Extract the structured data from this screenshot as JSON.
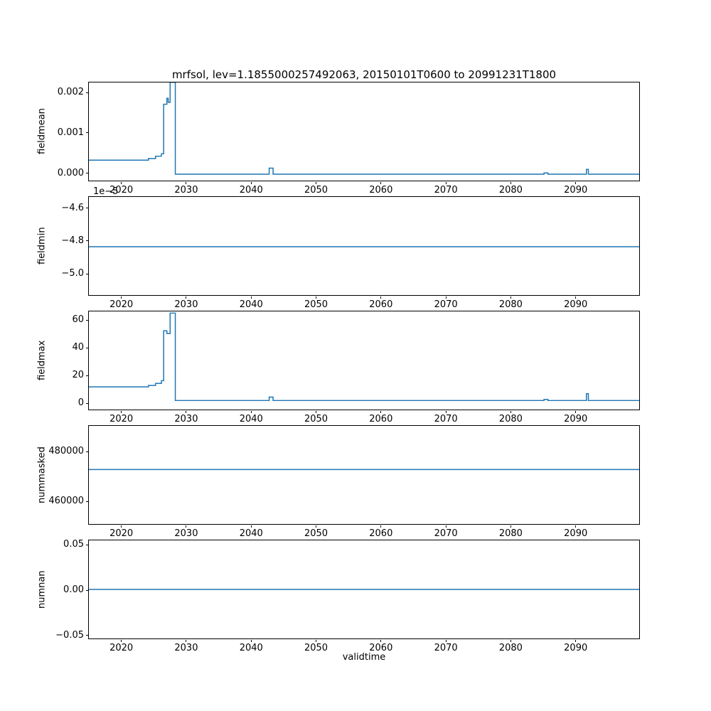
{
  "figure": {
    "title": "mrfsol, lev=1.1855000257492063, 20150101T0600 to 20991231T1800",
    "xlabel": "validtime",
    "line_color": "#1f77b4",
    "background": "#ffffff",
    "xlim": [
      2015,
      2100
    ],
    "xticks": [
      2020,
      2030,
      2040,
      2050,
      2060,
      2070,
      2080,
      2090
    ]
  },
  "chart_data": [
    {
      "type": "line",
      "panel": "fieldmean",
      "ylabel": "fieldmean",
      "ylim": [
        -0.000211,
        0.002246
      ],
      "yticks": [
        [
          0.0,
          "0.000"
        ],
        [
          0.001,
          "0.001"
        ],
        [
          0.002,
          "0.002"
        ]
      ],
      "points": [
        [
          2015,
          0.0003
        ],
        [
          2024.2,
          0.0003
        ],
        [
          2024.2,
          0.00034
        ],
        [
          2025.3,
          0.00034
        ],
        [
          2025.3,
          0.0004
        ],
        [
          2026.2,
          0.0004
        ],
        [
          2026.2,
          0.00046
        ],
        [
          2026.55,
          0.00046
        ],
        [
          2026.55,
          0.0017
        ],
        [
          2027.05,
          0.0017
        ],
        [
          2027.05,
          0.00185
        ],
        [
          2027.25,
          0.00185
        ],
        [
          2027.25,
          0.00175
        ],
        [
          2027.55,
          0.00175
        ],
        [
          2027.55,
          0.00225
        ],
        [
          2028.35,
          0.00225
        ],
        [
          2028.35,
          -5e-05
        ],
        [
          2042.85,
          -5e-05
        ],
        [
          2042.85,
          0.0001
        ],
        [
          2043.45,
          0.0001
        ],
        [
          2043.45,
          -5e-05
        ],
        [
          2085.3,
          -5e-05
        ],
        [
          2085.3,
          -2e-05
        ],
        [
          2085.9,
          -2e-05
        ],
        [
          2085.9,
          -5e-05
        ],
        [
          2091.85,
          -5e-05
        ],
        [
          2091.85,
          7e-05
        ],
        [
          2092.15,
          7e-05
        ],
        [
          2092.15,
          -5e-05
        ],
        [
          2099.99,
          -5e-05
        ]
      ]
    },
    {
      "type": "line",
      "panel": "fieldmin",
      "ylabel": "fieldmin",
      "offset_text": "1e−5",
      "ylim": [
        -5.138e-05,
        -4.533e-05
      ],
      "yticks": [
        [
          -4.6e-05,
          "−4.6"
        ],
        [
          -4.8e-05,
          "−4.8"
        ],
        [
          -5e-05,
          "−5.0"
        ]
      ],
      "points": [
        [
          2015,
          -4.84e-05
        ],
        [
          2099.99,
          -4.84e-05
        ]
      ]
    },
    {
      "type": "line",
      "panel": "fieldmax",
      "ylabel": "fieldmax",
      "ylim": [
        -5.6,
        66.2
      ],
      "yticks": [
        [
          0,
          "0"
        ],
        [
          20,
          "20"
        ],
        [
          40,
          "40"
        ],
        [
          60,
          "60"
        ]
      ],
      "points": [
        [
          2015,
          11
        ],
        [
          2024.2,
          11
        ],
        [
          2024.2,
          12
        ],
        [
          2025.3,
          12
        ],
        [
          2025.3,
          13.5
        ],
        [
          2026.2,
          13.5
        ],
        [
          2026.2,
          15.5
        ],
        [
          2026.55,
          15.5
        ],
        [
          2026.55,
          52
        ],
        [
          2027.05,
          52
        ],
        [
          2027.05,
          50
        ],
        [
          2027.55,
          50
        ],
        [
          2027.55,
          65
        ],
        [
          2028.35,
          65
        ],
        [
          2028.35,
          1
        ],
        [
          2042.85,
          1
        ],
        [
          2042.85,
          3.5
        ],
        [
          2043.45,
          3.5
        ],
        [
          2043.45,
          1
        ],
        [
          2085.3,
          1
        ],
        [
          2085.3,
          1.8
        ],
        [
          2085.9,
          1.8
        ],
        [
          2085.9,
          1
        ],
        [
          2091.85,
          1
        ],
        [
          2091.85,
          6
        ],
        [
          2092.15,
          6
        ],
        [
          2092.15,
          1
        ],
        [
          2099.99,
          1
        ]
      ]
    },
    {
      "type": "line",
      "panel": "nummasked",
      "ylabel": "nummasked",
      "ylim": [
        450300,
        490300
      ],
      "yticks": [
        [
          460000,
          "460000"
        ],
        [
          480000,
          "480000"
        ]
      ],
      "points": [
        [
          2015,
          472500
        ],
        [
          2099.99,
          472500
        ]
      ]
    },
    {
      "type": "line",
      "panel": "numnan",
      "ylabel": "numnan",
      "ylim": [
        -0.055,
        0.055
      ],
      "yticks": [
        [
          -0.05,
          "−0.05"
        ],
        [
          0.0,
          "0.00"
        ],
        [
          0.05,
          "0.05"
        ]
      ],
      "points": [
        [
          2015,
          0
        ],
        [
          2099.99,
          0
        ]
      ]
    }
  ]
}
